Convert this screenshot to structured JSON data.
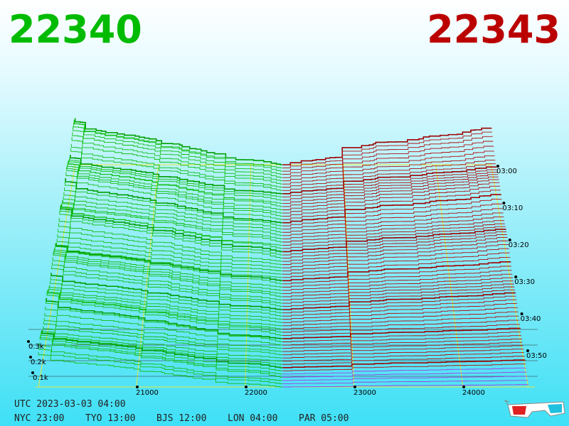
{
  "header": {
    "bid": "22340",
    "ask": "22343"
  },
  "price_axis": [
    "21000",
    "22000",
    "23000",
    "24000"
  ],
  "depth_axis": [
    "0.3k",
    "0.2k",
    "0.1k"
  ],
  "time_axis": [
    "03:00",
    "03:10",
    "03:20",
    "03:30",
    "03:40",
    "03:50"
  ],
  "footer": {
    "utc": "UTC 2023-03-03 04:00",
    "zones": [
      "NYC 23:00",
      "TYO 13:00",
      "BJS 12:00",
      "LON 04:00",
      "PAR 05:00"
    ]
  }
}
